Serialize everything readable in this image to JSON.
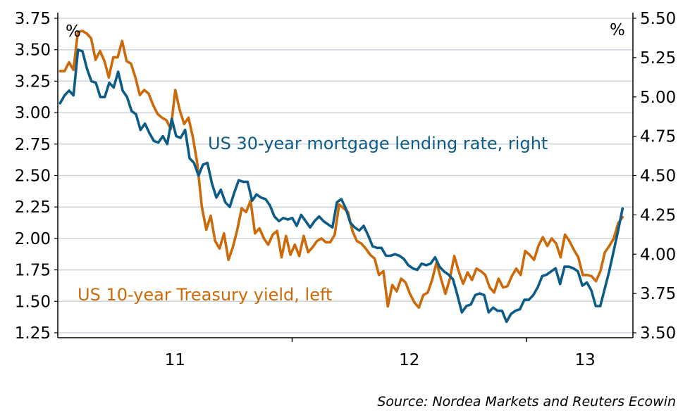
{
  "chart_data": {
    "type": "line",
    "title": "",
    "source": "Source: Nordea Markets and Reuters Ecowin",
    "left_axis": {
      "unit_label": "%",
      "ylim": [
        1.25,
        3.75
      ],
      "ticks": [
        "1.25",
        "1.50",
        "1.75",
        "2.00",
        "2.25",
        "2.50",
        "2.75",
        "3.00",
        "3.25",
        "3.50",
        "3.75"
      ]
    },
    "right_axis": {
      "unit_label": "%",
      "ylim": [
        3.5,
        5.5
      ],
      "ticks": [
        "3.50",
        "3.75",
        "4.00",
        "4.25",
        "4.50",
        "4.75",
        "5.00",
        "5.25",
        "5.50"
      ]
    },
    "x_axis": {
      "xlim": [
        2011.0,
        2013.45
      ],
      "year_boundaries": [
        2012.0,
        2013.0
      ],
      "labels": [
        {
          "text": "11",
          "at": 2011.5
        },
        {
          "text": "12",
          "at": 2012.5
        },
        {
          "text": "13",
          "at": 2013.25
        }
      ]
    },
    "grid": true,
    "series": [
      {
        "name": "US 10-year Treasury yield, left",
        "axis": "left",
        "color": "#cc6a0a",
        "x_start": 2011.01,
        "x_end": 2013.41,
        "values": [
          3.33,
          3.33,
          3.4,
          3.34,
          3.64,
          3.65,
          3.63,
          3.59,
          3.42,
          3.49,
          3.41,
          3.28,
          3.44,
          3.44,
          3.57,
          3.41,
          3.39,
          3.28,
          3.14,
          3.18,
          3.15,
          3.06,
          2.99,
          2.96,
          2.94,
          2.87,
          3.18,
          3.02,
          2.91,
          2.96,
          2.8,
          2.59,
          2.25,
          2.07,
          2.18,
          1.98,
          1.92,
          2.04,
          1.83,
          1.93,
          2.07,
          2.24,
          2.21,
          2.3,
          2.04,
          2.08,
          2.0,
          1.95,
          2.03,
          2.06,
          1.85,
          2.02,
          1.87,
          1.95,
          1.86,
          2.02,
          1.89,
          1.93,
          1.98,
          2.0,
          1.97,
          1.97,
          2.03,
          2.27,
          2.24,
          2.21,
          2.06,
          1.98,
          1.96,
          1.92,
          1.87,
          1.84,
          1.71,
          1.74,
          1.46,
          1.63,
          1.58,
          1.68,
          1.65,
          1.56,
          1.49,
          1.45,
          1.55,
          1.57,
          1.67,
          1.81,
          1.68,
          1.56,
          1.68,
          1.86,
          1.74,
          1.64,
          1.73,
          1.67,
          1.76,
          1.74,
          1.71,
          1.61,
          1.57,
          1.68,
          1.61,
          1.62,
          1.7,
          1.76,
          1.71,
          1.9,
          1.87,
          1.83,
          1.94,
          2.01,
          1.94,
          2.0,
          1.96,
          1.85,
          2.03,
          1.98,
          1.91,
          1.85,
          1.71,
          1.71,
          1.7,
          1.66,
          1.74,
          1.89,
          1.94,
          2.0,
          2.12,
          2.17
        ]
      },
      {
        "name": "US 30-year mortgage lending rate, right",
        "axis": "right",
        "color": "#0d5b87",
        "x_start": 2011.01,
        "x_end": 2013.41,
        "values": [
          4.96,
          5.01,
          5.04,
          5.01,
          5.3,
          5.29,
          5.18,
          5.1,
          5.09,
          5.0,
          5.0,
          5.09,
          5.06,
          5.16,
          5.04,
          5.0,
          4.91,
          4.89,
          4.79,
          4.83,
          4.77,
          4.72,
          4.71,
          4.75,
          4.7,
          4.86,
          4.75,
          4.74,
          4.79,
          4.61,
          4.58,
          4.5,
          4.57,
          4.58,
          4.45,
          4.36,
          4.41,
          4.33,
          4.3,
          4.39,
          4.47,
          4.46,
          4.46,
          4.34,
          4.38,
          4.36,
          4.35,
          4.31,
          4.24,
          4.21,
          4.23,
          4.22,
          4.23,
          4.18,
          4.25,
          4.21,
          4.17,
          4.21,
          4.24,
          4.21,
          4.19,
          4.17,
          4.33,
          4.35,
          4.29,
          4.2,
          4.17,
          4.15,
          4.18,
          4.12,
          4.05,
          4.04,
          4.04,
          3.99,
          3.99,
          4.0,
          3.99,
          3.97,
          3.93,
          3.91,
          3.9,
          3.94,
          3.93,
          3.94,
          3.98,
          3.92,
          3.89,
          3.87,
          3.84,
          3.74,
          3.63,
          3.67,
          3.68,
          3.74,
          3.75,
          3.74,
          3.63,
          3.66,
          3.64,
          3.64,
          3.57,
          3.62,
          3.64,
          3.65,
          3.71,
          3.71,
          3.74,
          3.79,
          3.86,
          3.87,
          3.89,
          3.91,
          3.81,
          3.92,
          3.92,
          3.91,
          3.89,
          3.8,
          3.82,
          3.77,
          3.67,
          3.67,
          3.78,
          3.89,
          4.02,
          4.15,
          4.29
        ]
      }
    ]
  }
}
